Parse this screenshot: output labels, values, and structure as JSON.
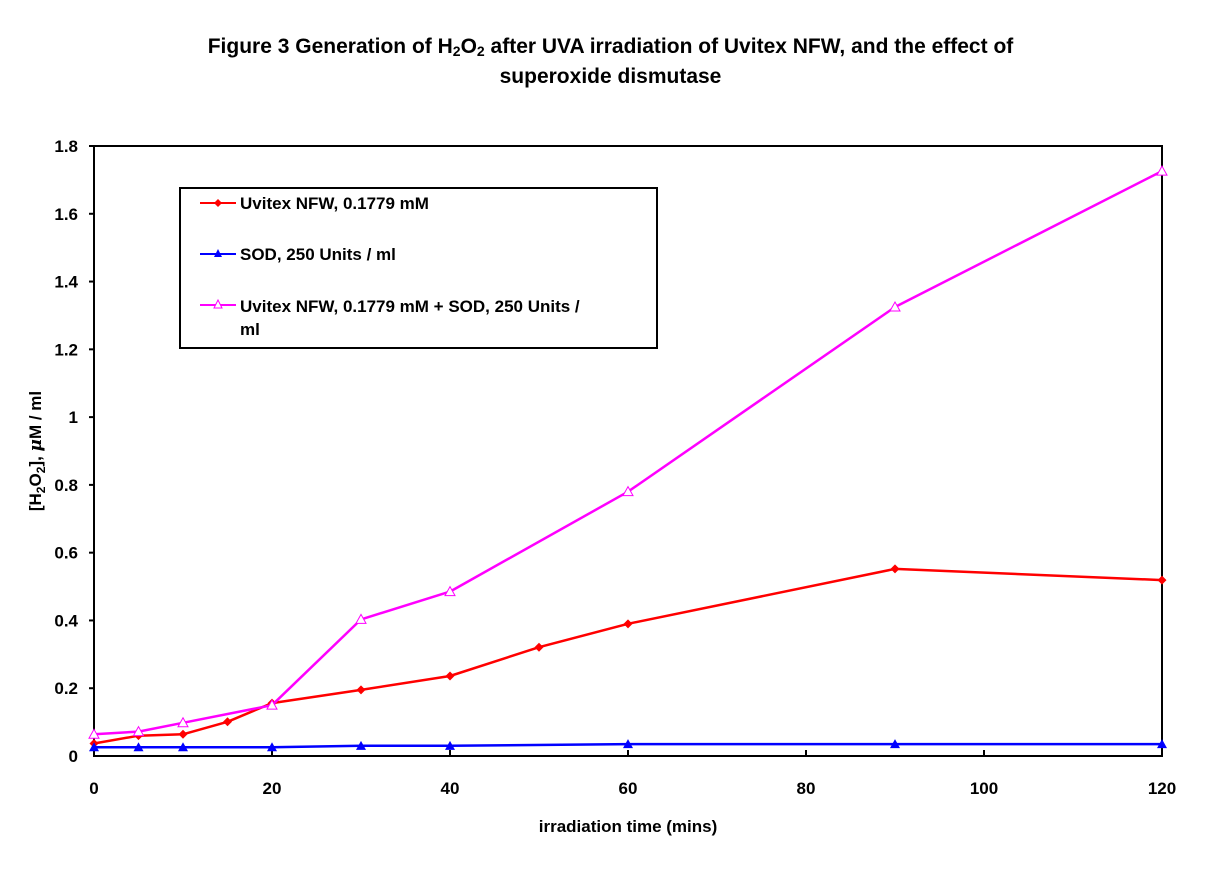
{
  "chart_data": {
    "type": "line",
    "title_line1_prefix": "Figure 3  Generation of H",
    "title_sub1": "2",
    "title_mid": "O",
    "title_sub2": "2",
    "title_line1_suffix": " after UVA irradiation of Uvitex NFW, and the effect of",
    "title_line2": "superoxide dismutase",
    "xlabel": "irradiation time (mins)",
    "ylabel_prefix": "[H",
    "ylabel_sub1": "2",
    "ylabel_mid": "O",
    "ylabel_sub2": "2",
    "ylabel_suffix": "], ",
    "ylabel_mu": "μ",
    "ylabel_unit": "M / ml",
    "xlim": [
      0,
      120
    ],
    "ylim": [
      0,
      1.8
    ],
    "xticks": [
      0,
      20,
      40,
      60,
      80,
      100,
      120
    ],
    "xtick_labels": [
      "0",
      "20",
      "40",
      "60",
      "80",
      "100",
      "120"
    ],
    "yticks": [
      0,
      0.2,
      0.4,
      0.6,
      0.8,
      1.0,
      1.2,
      1.4,
      1.6,
      1.8
    ],
    "ytick_labels": [
      "0",
      "0.2",
      "0.4",
      "0.6",
      "0.8",
      "1",
      "1.2",
      "1.4",
      "1.6",
      "1.8"
    ],
    "grid": false,
    "legend_position": "top-left",
    "series": [
      {
        "name": "Uvitex NFW, 0.1779 mM",
        "color": "#ff0000",
        "marker": "diamond",
        "x": [
          0,
          5,
          10,
          15,
          20,
          30,
          40,
          50,
          60,
          90,
          120
        ],
        "y": [
          0.037,
          0.06,
          0.064,
          0.101,
          0.156,
          0.195,
          0.236,
          0.321,
          0.39,
          0.552,
          0.519
        ]
      },
      {
        "name": "SOD, 250 Units / ml",
        "color": "#0000ff",
        "marker": "triangle-filled",
        "x": [
          0,
          5,
          10,
          20,
          30,
          40,
          60,
          90,
          120
        ],
        "y": [
          0.026,
          0.026,
          0.026,
          0.026,
          0.03,
          0.03,
          0.035,
          0.035,
          0.035
        ]
      },
      {
        "name": "Uvitex NFW, 0.1779 mM + SOD, 250 Units / ml",
        "legend_line1": "Uvitex NFW, 0.1779 mM + SOD, 250 Units /",
        "legend_line2": "ml",
        "color": "#ff00ff",
        "marker": "triangle-open",
        "x": [
          0,
          5,
          10,
          20,
          30,
          40,
          60,
          90,
          120
        ],
        "y": [
          0.064,
          0.072,
          0.098,
          0.15,
          0.403,
          0.485,
          0.78,
          1.325,
          1.726
        ]
      }
    ]
  }
}
